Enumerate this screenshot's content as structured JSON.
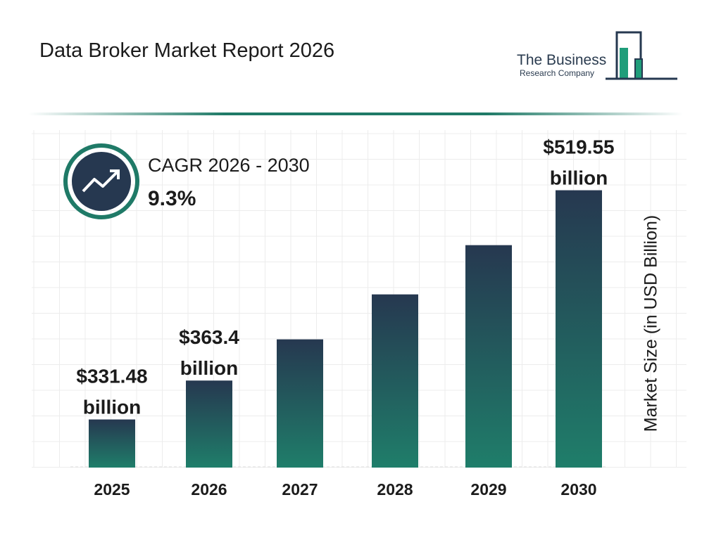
{
  "title": "Data Broker Market Report 2026",
  "logo": {
    "line1": "The Business",
    "line2": "Research Company"
  },
  "cagr": {
    "label": "CAGR 2026 - 2030",
    "value": "9.3%",
    "icon": "trending-up-icon"
  },
  "colors": {
    "bar_top": "#263850",
    "bar_bottom": "#1f7e6a",
    "accent": "#1f7a67"
  },
  "chart_data": {
    "type": "bar",
    "categories": [
      "2025",
      "2026",
      "2027",
      "2028",
      "2029",
      "2030"
    ],
    "values": [
      331.48,
      363.4,
      397.2,
      434.1,
      474.5,
      519.55
    ],
    "data_labels": [
      {
        "index": 0,
        "line1": "$331.48",
        "line2": "billion"
      },
      {
        "index": 1,
        "line1": "$363.4",
        "line2": "billion"
      },
      {
        "index": 5,
        "line1": "$519.55",
        "line2": "billion"
      }
    ],
    "xlabel": "",
    "ylabel": "Market Size (in USD Billion)",
    "grid": true
  }
}
